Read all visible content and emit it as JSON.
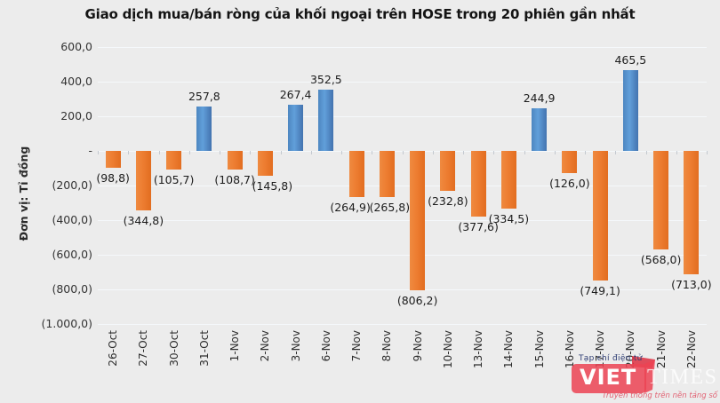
{
  "title": "Giao dịch mua/bán ròng của khối ngoại trên HOSE trong 20 phiên gần nhất",
  "y_axis_unit": "Đơn vị: Tỉ đồng",
  "chart_data": {
    "type": "bar",
    "title": "Giao dịch mua/bán ròng của khối ngoại trên HOSE trong 20 phiên gần nhất",
    "ylabel": "Đơn vị: Tỉ đồng",
    "xlabel": "",
    "categories": [
      "26-Oct",
      "27-Oct",
      "30-Oct",
      "31-Oct",
      "1-Nov",
      "2-Nov",
      "3-Nov",
      "6-Nov",
      "7-Nov",
      "8-Nov",
      "9-Nov",
      "10-Nov",
      "13-Nov",
      "14-Nov",
      "15-Nov",
      "16-Nov",
      "17-Nov",
      "20-Nov",
      "21-Nov",
      "22-Nov"
    ],
    "values": [
      -98.8,
      -344.8,
      -105.7,
      257.8,
      -108.7,
      -145.8,
      267.4,
      352.5,
      -264.9,
      -265.8,
      -806.2,
      -232.8,
      -377.6,
      -334.5,
      244.9,
      -126.0,
      -749.1,
      465.5,
      -568.0,
      -713.0
    ],
    "data_labels": [
      "(98,8)",
      "(344,8)",
      "(105,7)",
      "257,8",
      "(108,7)",
      "(145,8)",
      "267,4",
      "352,5",
      "(264,9)",
      "(265,8)",
      "(806,2)",
      "(232,8)",
      "(377,6)",
      "(334,5)",
      "244,9",
      "(126,0)",
      "(749,1)",
      "465,5",
      "(568,0)",
      "(713,0)"
    ],
    "label_dx": [
      0,
      0,
      0,
      0,
      0,
      8,
      0,
      0,
      -7,
      3,
      0,
      0,
      0,
      0,
      0,
      0,
      0,
      0,
      0,
      0
    ],
    "y_ticks": [
      {
        "value": 600,
        "label": "600,0"
      },
      {
        "value": 400,
        "label": "400,0"
      },
      {
        "value": 200,
        "label": "200,0"
      },
      {
        "value": 0,
        "label": "-"
      },
      {
        "value": -200,
        "label": "(200,0)"
      },
      {
        "value": -400,
        "label": "(400,0)"
      },
      {
        "value": -600,
        "label": "(600,0)"
      },
      {
        "value": -800,
        "label": "(800,0)"
      },
      {
        "value": -1000,
        "label": "(1.000,0)"
      }
    ],
    "ylim": [
      -1000,
      600
    ],
    "grid": true,
    "legend": "none",
    "positive_color": "#5B9BD5",
    "negative_color": "#ED7D31",
    "background_color": "#ECECEC"
  },
  "watermark": {
    "top_text": "Tạp chí điện tử",
    "name_left": "VIET",
    "name_right": "TIMES",
    "tagline": "Truyền thông trên nền tảng số",
    "brand_color": "#EE4B59"
  }
}
